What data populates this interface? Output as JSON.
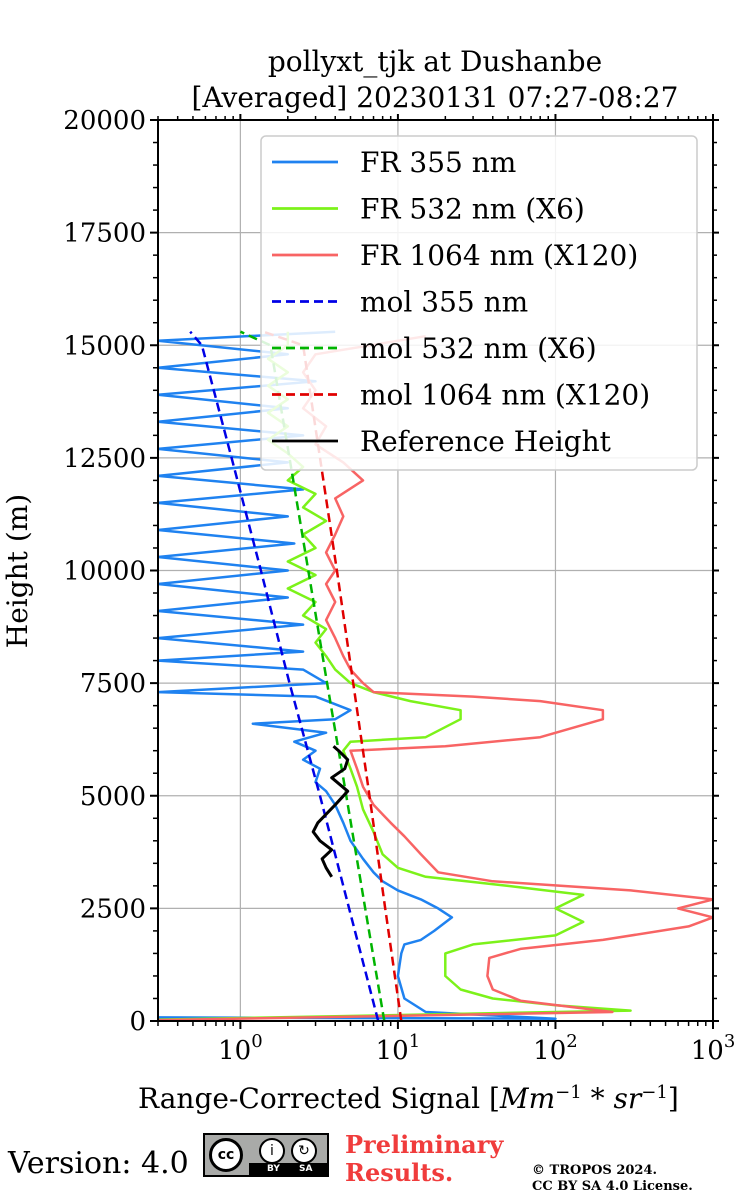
{
  "chart_data": {
    "type": "line",
    "title_line1": "pollyxt_tjk at Dushanbe",
    "title_line2": "[Averaged] 20230131 07:27-08:27",
    "xlabel": "Range-Corrected Signal [",
    "xlabel_unit_base": "Mm",
    "xlabel_unit_exp": "−1",
    "xlabel_unit_mid": " * ",
    "xlabel_unit_base2": "sr",
    "xlabel_unit_exp2": "−1",
    "xlabel_close": "]",
    "ylabel": "Height (m)",
    "xscale": "log",
    "xlim": [
      0.3,
      1000
    ],
    "ylim": [
      0,
      20000
    ],
    "grid": true,
    "legend_position": "top-right",
    "ytick_labels": [
      "0",
      "2500",
      "5000",
      "7500",
      "10000",
      "12500",
      "15000",
      "17500",
      "20000"
    ],
    "ytick_values": [
      0,
      2500,
      5000,
      7500,
      10000,
      12500,
      15000,
      17500,
      20000
    ],
    "xtick_labels": [
      {
        "base": "10",
        "exp": "0",
        "value": 1
      },
      {
        "base": "10",
        "exp": "1",
        "value": 10
      },
      {
        "base": "10",
        "exp": "2",
        "value": 100
      },
      {
        "base": "10",
        "exp": "3",
        "value": 1000
      }
    ],
    "series": [
      {
        "name": "FR 355 nm",
        "color": "#1f82f0",
        "style": "solid",
        "points": [
          [
            0.3,
            80
          ],
          [
            100,
            50
          ],
          [
            15,
            200
          ],
          [
            11,
            500
          ],
          [
            10,
            1000
          ],
          [
            10.5,
            1500
          ],
          [
            11,
            1700
          ],
          [
            14,
            1800
          ],
          [
            17,
            2000
          ],
          [
            22,
            2300
          ],
          [
            18,
            2500
          ],
          [
            14,
            2700
          ],
          [
            10,
            2900
          ],
          [
            8,
            3100
          ],
          [
            7,
            3300
          ],
          [
            6,
            3600
          ],
          [
            5,
            4000
          ],
          [
            4.5,
            4400
          ],
          [
            4,
            4800
          ],
          [
            3.5,
            5100
          ],
          [
            3,
            5300
          ],
          [
            3.2,
            5600
          ],
          [
            2.5,
            5800
          ],
          [
            3,
            6000
          ],
          [
            2.2,
            6200
          ],
          [
            3.5,
            6400
          ],
          [
            1.2,
            6600
          ],
          [
            4,
            6700
          ],
          [
            5,
            6900
          ],
          [
            3,
            7200
          ],
          [
            0.3,
            7300
          ],
          [
            3.5,
            7500
          ],
          [
            2.5,
            7800
          ],
          [
            0.3,
            8000
          ],
          [
            2.5,
            8200
          ],
          [
            0.3,
            8500
          ],
          [
            2.5,
            8800
          ],
          [
            0.3,
            9100
          ],
          [
            2,
            9400
          ],
          [
            0.3,
            9700
          ],
          [
            2,
            10000
          ],
          [
            0.3,
            10300
          ],
          [
            2.2,
            10600
          ],
          [
            0.3,
            10900
          ],
          [
            2,
            11200
          ],
          [
            0.3,
            11500
          ],
          [
            2.5,
            11800
          ],
          [
            0.3,
            12100
          ],
          [
            2,
            12400
          ],
          [
            0.3,
            12700
          ],
          [
            2.5,
            13000
          ],
          [
            0.3,
            13300
          ],
          [
            2,
            13600
          ],
          [
            0.3,
            13900
          ],
          [
            3,
            14200
          ],
          [
            0.3,
            14500
          ],
          [
            2,
            14800
          ],
          [
            0.3,
            15100
          ],
          [
            4,
            15300
          ]
        ]
      },
      {
        "name": "FR 532 nm (X6)",
        "color": "#7cf21a",
        "style": "solid",
        "points": [
          [
            0.3,
            30
          ],
          [
            300,
            230
          ],
          [
            100,
            350
          ],
          [
            40,
            500
          ],
          [
            25,
            700
          ],
          [
            20,
            1000
          ],
          [
            20,
            1500
          ],
          [
            30,
            1700
          ],
          [
            100,
            1900
          ],
          [
            150,
            2200
          ],
          [
            100,
            2500
          ],
          [
            150,
            2800
          ],
          [
            50,
            3000
          ],
          [
            15,
            3200
          ],
          [
            10,
            3400
          ],
          [
            8,
            3700
          ],
          [
            7,
            4200
          ],
          [
            6,
            4700
          ],
          [
            5.5,
            5200
          ],
          [
            5,
            5600
          ],
          [
            4.5,
            6000
          ],
          [
            5,
            6200
          ],
          [
            15,
            6300
          ],
          [
            25,
            6700
          ],
          [
            25,
            6900
          ],
          [
            12,
            7100
          ],
          [
            7,
            7300
          ],
          [
            5,
            7500
          ],
          [
            4,
            7800
          ],
          [
            3.5,
            8100
          ],
          [
            3,
            8400
          ],
          [
            3.5,
            8700
          ],
          [
            2.5,
            9000
          ],
          [
            3,
            9300
          ],
          [
            2,
            9600
          ],
          [
            3,
            9900
          ],
          [
            2,
            10200
          ],
          [
            3,
            10500
          ],
          [
            2.5,
            10800
          ],
          [
            3.5,
            11100
          ],
          [
            2.5,
            11400
          ],
          [
            3,
            11700
          ],
          [
            2,
            12000
          ],
          [
            2.5,
            12300
          ],
          [
            2,
            12600
          ],
          [
            1.5,
            12900
          ],
          [
            2,
            13200
          ],
          [
            1.5,
            13500
          ],
          [
            2,
            13800
          ],
          [
            1.5,
            14100
          ],
          [
            2,
            14400
          ],
          [
            1.5,
            14700
          ],
          [
            2,
            15000
          ],
          [
            2,
            15300
          ]
        ]
      },
      {
        "name": "FR 1064 nm (X120)",
        "color": "#f86464",
        "style": "solid",
        "points": [
          [
            0.3,
            20
          ],
          [
            230,
            200
          ],
          [
            60,
            450
          ],
          [
            40,
            700
          ],
          [
            37,
            1000
          ],
          [
            38,
            1400
          ],
          [
            60,
            1600
          ],
          [
            200,
            1800
          ],
          [
            700,
            2100
          ],
          [
            1000,
            2300
          ],
          [
            600,
            2500
          ],
          [
            1000,
            2700
          ],
          [
            300,
            2900
          ],
          [
            40,
            3100
          ],
          [
            18,
            3300
          ],
          [
            14,
            3700
          ],
          [
            11,
            4100
          ],
          [
            9,
            4400
          ],
          [
            7,
            4800
          ],
          [
            6,
            5200
          ],
          [
            5.5,
            5600
          ],
          [
            5,
            6000
          ],
          [
            20,
            6100
          ],
          [
            80,
            6300
          ],
          [
            200,
            6700
          ],
          [
            200,
            6900
          ],
          [
            80,
            7100
          ],
          [
            30,
            7200
          ],
          [
            7,
            7300
          ],
          [
            6,
            7500
          ],
          [
            5,
            7800
          ],
          [
            4.5,
            8100
          ],
          [
            4,
            8500
          ],
          [
            3.5,
            8900
          ],
          [
            4,
            9300
          ],
          [
            3.5,
            9700
          ],
          [
            4,
            10000
          ],
          [
            3.5,
            10400
          ],
          [
            4,
            10800
          ],
          [
            4.5,
            11200
          ],
          [
            4,
            11600
          ],
          [
            6,
            12000
          ],
          [
            4.5,
            12400
          ],
          [
            3,
            12800
          ],
          [
            3.5,
            13200
          ],
          [
            2.5,
            13600
          ],
          [
            3,
            14000
          ],
          [
            2.5,
            14400
          ],
          [
            3,
            14800
          ],
          [
            15,
            15200
          ]
        ]
      },
      {
        "name": "mol 355 nm",
        "color": "#0000e6",
        "style": "dashed",
        "points": [
          [
            7.5,
            0
          ],
          [
            4.9,
            2500
          ],
          [
            3.2,
            5000
          ],
          [
            2.05,
            7500
          ],
          [
            1.35,
            10000
          ],
          [
            0.88,
            12500
          ],
          [
            0.57,
            15000
          ],
          [
            0.48,
            15300
          ]
        ]
      },
      {
        "name": "mol 532 nm (X6)",
        "color": "#00b400",
        "style": "dashed",
        "points": [
          [
            8.2,
            0
          ],
          [
            6.2,
            2500
          ],
          [
            4.7,
            5000
          ],
          [
            3.55,
            7500
          ],
          [
            2.7,
            10000
          ],
          [
            2.05,
            12500
          ],
          [
            1.55,
            15000
          ],
          [
            1.0,
            15300
          ]
        ]
      },
      {
        "name": "mol 1064 nm (X120)",
        "color": "#e00000",
        "style": "dashed",
        "points": [
          [
            10.5,
            0
          ],
          [
            8.3,
            2500
          ],
          [
            6.6,
            5000
          ],
          [
            5.2,
            7500
          ],
          [
            4.1,
            10000
          ],
          [
            3.2,
            12500
          ],
          [
            2.5,
            15000
          ],
          [
            1.4,
            15300
          ]
        ]
      },
      {
        "name": "Reference Height",
        "color": "#000000",
        "style": "solid",
        "points": [
          [
            3.8,
            3200
          ],
          [
            3.5,
            3400
          ],
          [
            3.3,
            3600
          ],
          [
            3.8,
            3800
          ],
          [
            3.2,
            4000
          ],
          [
            2.9,
            4200
          ],
          [
            3.1,
            4400
          ],
          [
            4,
            4800
          ],
          [
            4.8,
            5100
          ],
          [
            3.8,
            5400
          ],
          [
            4.6,
            5600
          ],
          [
            4.8,
            5800
          ],
          [
            4.2,
            6000
          ],
          [
            3.9,
            6100
          ]
        ]
      }
    ]
  },
  "footer": {
    "version": "Version: 4.0",
    "cc_label": "cc",
    "by_symbol": "i",
    "sa_symbol": "↻",
    "by_text": "BY",
    "sa_text": "SA",
    "preliminary_line1": "Preliminary",
    "preliminary_line2": "Results.",
    "copyright_line1": "© TROPOS 2024.",
    "copyright_line2": "CC BY SA 4.0 License."
  }
}
